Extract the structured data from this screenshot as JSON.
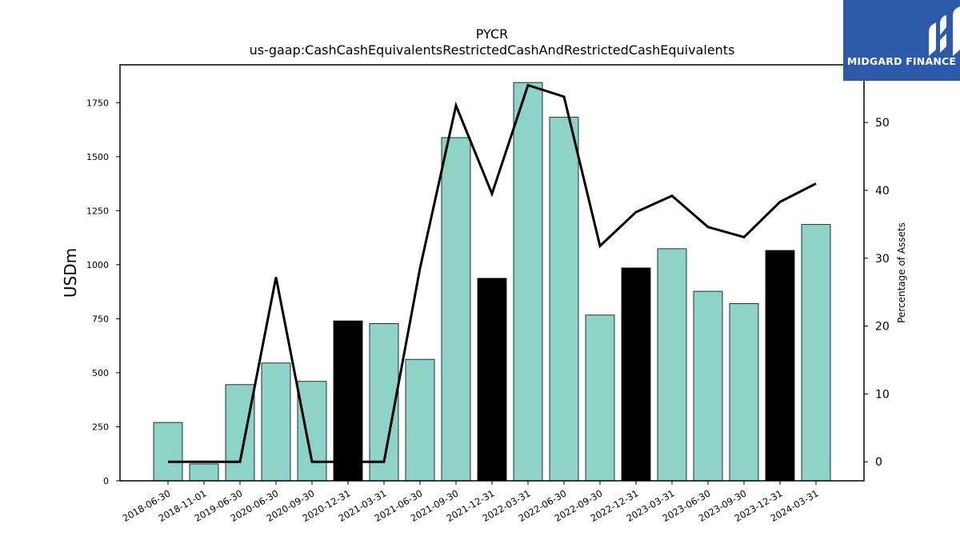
{
  "chart_data": {
    "type": "bar",
    "title": "PYCR",
    "subtitle": "us-gaap:CashCashEquivalentsRestrictedCashAndRestrictedCashEquivalents",
    "ylabel": "USDm",
    "y2label": "Percentage of Assets",
    "ylim": [
      0,
      1925
    ],
    "y2lim": [
      -2.8,
      58.5
    ],
    "yticks": [
      "0",
      "250",
      "500",
      "750",
      "1000",
      "1250",
      "1500",
      "1750"
    ],
    "y2ticks": [
      "0",
      "10",
      "20",
      "30",
      "40",
      "50"
    ],
    "categories": [
      "2018-06-30",
      "2018-11-01",
      "2019-06-30",
      "2020-06-30",
      "2020-09-30",
      "2020-12-31",
      "2021-03-31",
      "2021-06-30",
      "2021-09-30",
      "2021-12-31",
      "2022-03-31",
      "2022-06-30",
      "2022-09-30",
      "2022-12-31",
      "2023-03-31",
      "2023-06-30",
      "2023-09-30",
      "2023-12-31",
      "2024-03-31"
    ],
    "series": [
      {
        "type": "bar",
        "values": [
          270,
          78,
          445,
          545,
          460,
          740,
          728,
          562,
          1588,
          937,
          1843,
          1682,
          767,
          985,
          1074,
          877,
          820,
          1066,
          1186
        ],
        "colors": [
          "#8dd3c7",
          "#8dd3c7",
          "#8dd3c7",
          "#8dd3c7",
          "#8dd3c7",
          "#000000",
          "#8dd3c7",
          "#8dd3c7",
          "#8dd3c7",
          "#000000",
          "#8dd3c7",
          "#8dd3c7",
          "#8dd3c7",
          "#000000",
          "#8dd3c7",
          "#8dd3c7",
          "#8dd3c7",
          "#000000",
          "#8dd3c7"
        ]
      },
      {
        "type": "line",
        "axis": "right",
        "color": "#000000",
        "values": [
          0,
          0,
          0,
          27.2,
          0,
          0,
          0,
          28.5,
          52.5,
          39.5,
          55.5,
          53.8,
          31.8,
          36.8,
          39.2,
          34.6,
          33.1,
          38.3,
          41.0
        ]
      }
    ],
    "grid": false,
    "legend": "none"
  },
  "logo": {
    "text": "MIDGARD FINANCE"
  }
}
